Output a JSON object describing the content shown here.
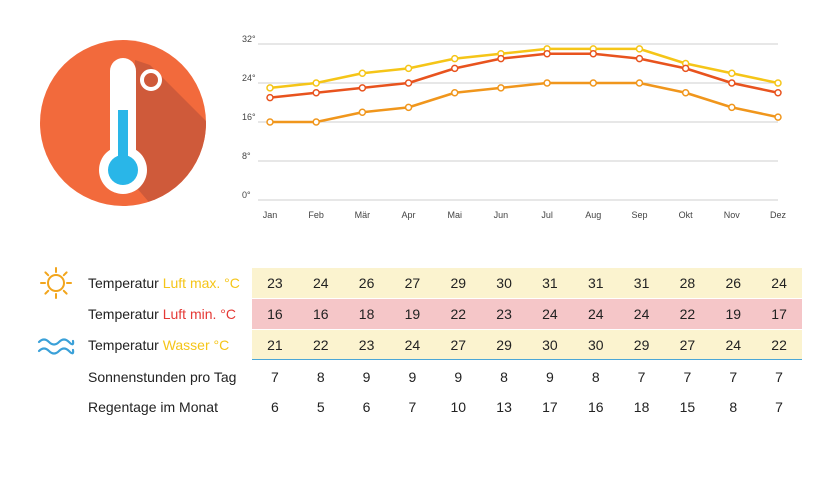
{
  "chart_data": {
    "type": "line",
    "categories": [
      "Jan",
      "Feb",
      "Mär",
      "Apr",
      "Mai",
      "Jun",
      "Jul",
      "Aug",
      "Sep",
      "Okt",
      "Nov",
      "Dez"
    ],
    "ylim": [
      0,
      32
    ],
    "yticks": [
      "0°",
      "8°",
      "16°",
      "24°",
      "32°"
    ],
    "ytick_values": [
      0,
      8,
      16,
      24,
      32
    ],
    "grid": true,
    "series": [
      {
        "name": "Luft max.",
        "color": "#f5c518",
        "values": [
          23,
          24,
          26,
          27,
          29,
          30,
          31,
          31,
          31,
          28,
          26,
          24
        ]
      },
      {
        "name": "Luft min.",
        "color": "#f0961c",
        "values": [
          16,
          16,
          18,
          19,
          22,
          23,
          24,
          24,
          24,
          22,
          19,
          17
        ]
      },
      {
        "name": "Wasser",
        "color": "#e8531e",
        "values": [
          21,
          22,
          23,
          24,
          27,
          29,
          30,
          30,
          29,
          27,
          24,
          22
        ]
      }
    ]
  },
  "table": {
    "rows": [
      {
        "key": "max",
        "prefix": "Temperatur ",
        "highlight": "Luft max. °C",
        "highlight_color": "#f5c518",
        "icon": "sun-icon",
        "bg": "max",
        "values": [
          "23",
          "24",
          "26",
          "27",
          "29",
          "30",
          "31",
          "31",
          "31",
          "28",
          "26",
          "24"
        ]
      },
      {
        "key": "min",
        "prefix": "Temperatur ",
        "highlight": "Luft min. °C",
        "highlight_color": "#e53935",
        "icon": "",
        "bg": "min",
        "values": [
          "16",
          "16",
          "18",
          "19",
          "22",
          "23",
          "24",
          "24",
          "24",
          "22",
          "19",
          "17"
        ]
      },
      {
        "key": "water",
        "prefix": "Temperatur ",
        "highlight": "Wasser °C",
        "highlight_color": "#f5c518",
        "icon": "waves-icon",
        "bg": "water",
        "values": [
          "21",
          "22",
          "23",
          "24",
          "27",
          "29",
          "30",
          "30",
          "29",
          "27",
          "24",
          "22"
        ]
      },
      {
        "key": "sun",
        "prefix": "Sonnenstunden pro Tag",
        "highlight": "",
        "highlight_color": "",
        "icon": "",
        "bg": "",
        "values": [
          "7",
          "8",
          "9",
          "9",
          "9",
          "8",
          "9",
          "8",
          "7",
          "7",
          "7",
          "7"
        ]
      },
      {
        "key": "rain",
        "prefix": "Regentage im Monat",
        "highlight": "",
        "highlight_color": "",
        "icon": "",
        "bg": "",
        "values": [
          "6",
          "5",
          "6",
          "7",
          "10",
          "13",
          "17",
          "16",
          "18",
          "15",
          "8",
          "7"
        ]
      }
    ]
  },
  "icons": {
    "thermometer": "thermometer-icon",
    "sun": "sun-icon",
    "waves": "waves-icon"
  },
  "colors": {
    "thermo_circle": "#f26a3c",
    "thermo_shadow": "#c9573a",
    "thermo_fill": "#29b6e8",
    "grid": "#cfcfcf",
    "sun_icon": "#f2a51c",
    "water_icon": "#3aa0d8"
  }
}
